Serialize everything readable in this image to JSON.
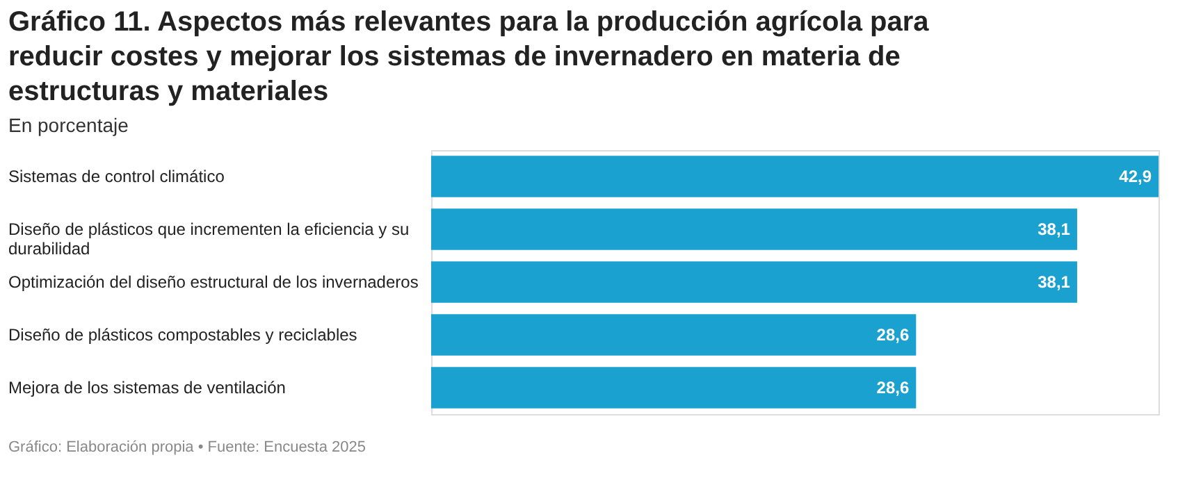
{
  "chart_data": {
    "type": "bar",
    "orientation": "horizontal",
    "title": "Gráfico 11. Aspectos más relevantes para la producción agrícola para reducir costes y mejorar los sistemas de invernadero en materia de estructuras y materiales",
    "subtitle": "En porcentaje",
    "categories": [
      "Sistemas de control climático",
      "Diseño de plásticos que incrementen la eficiencia y su durabilidad",
      "Optimización del diseño estructural de los invernaderos",
      "Diseño de plásticos compostables y reciclables",
      "Mejora de los sistemas de ventilación"
    ],
    "values": [
      42.9,
      38.1,
      38.1,
      28.6,
      28.6
    ],
    "value_labels": [
      "42,9",
      "38,1",
      "38,1",
      "28,6",
      "28,6"
    ],
    "color": "#1ba1cf",
    "annotations": [
      "Gráfico: Elaboración propia • Fuente: Encuesta 2025"
    ]
  }
}
